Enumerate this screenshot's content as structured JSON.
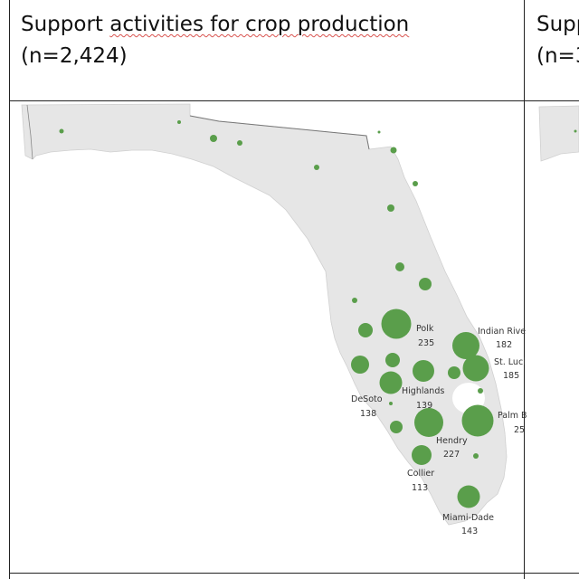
{
  "panel_left": {
    "title_line1_a": "Support ",
    "title_line1_b": "activities for crop production",
    "title_line2": "(n=2,424)"
  },
  "panel_right": {
    "title_line1": "Supp",
    "title_line2": "(n=3"
  },
  "colors": {
    "bubble": "#5a9e4b",
    "land": "#e6e6e6",
    "border": "#999999"
  },
  "county_labels": [
    {
      "name": "Polk",
      "value": "235"
    },
    {
      "name": "Indian Rive",
      "value": "182"
    },
    {
      "name": "St. Luci",
      "value": "185"
    },
    {
      "name": "Highlands",
      "value": "139"
    },
    {
      "name": "DeSoto",
      "value": "138"
    },
    {
      "name": "Palm B",
      "value": "25"
    },
    {
      "name": "Hendry",
      "value": "227"
    },
    {
      "name": "Collier",
      "value": "113"
    },
    {
      "name": "Miami-Dade",
      "value": "143"
    }
  ]
}
